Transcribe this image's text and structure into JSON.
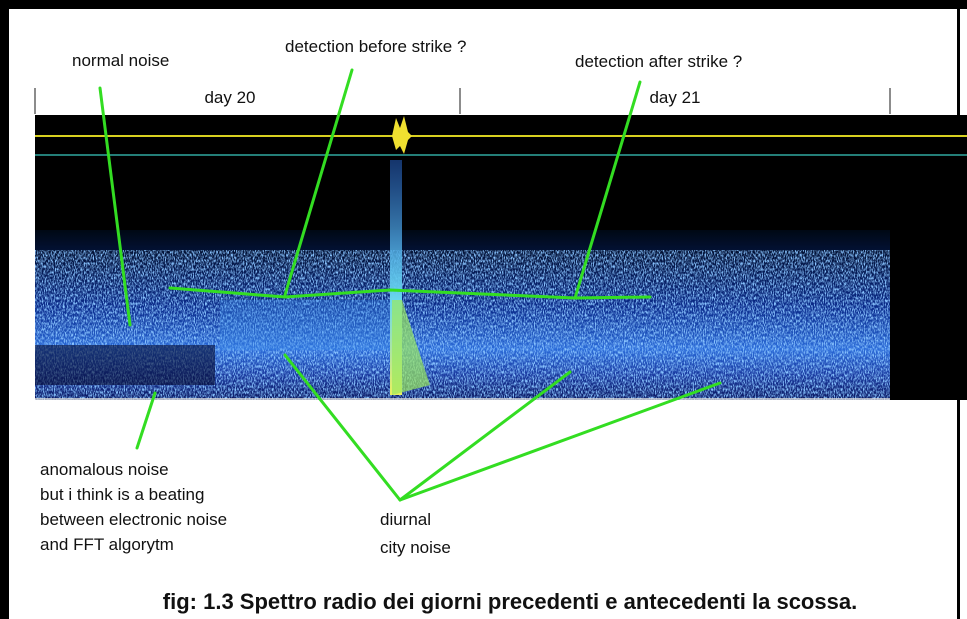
{
  "axis": {
    "day_labels": [
      "day 20",
      "day 21"
    ]
  },
  "annotations": {
    "normal_noise": "normal noise",
    "detection_before": "detection before strike ?",
    "detection_after": "detection after strike ?",
    "anomalous_noise": [
      "anomalous noise",
      "but i think is a beating",
      "between electronic noise",
      "and FFT algorytm"
    ],
    "diurnal_noise": [
      "diurnal",
      "city noise"
    ]
  },
  "caption": "fig: 1.3 Spettro radio dei giorni precedenti e antecedenti la scossa."
}
